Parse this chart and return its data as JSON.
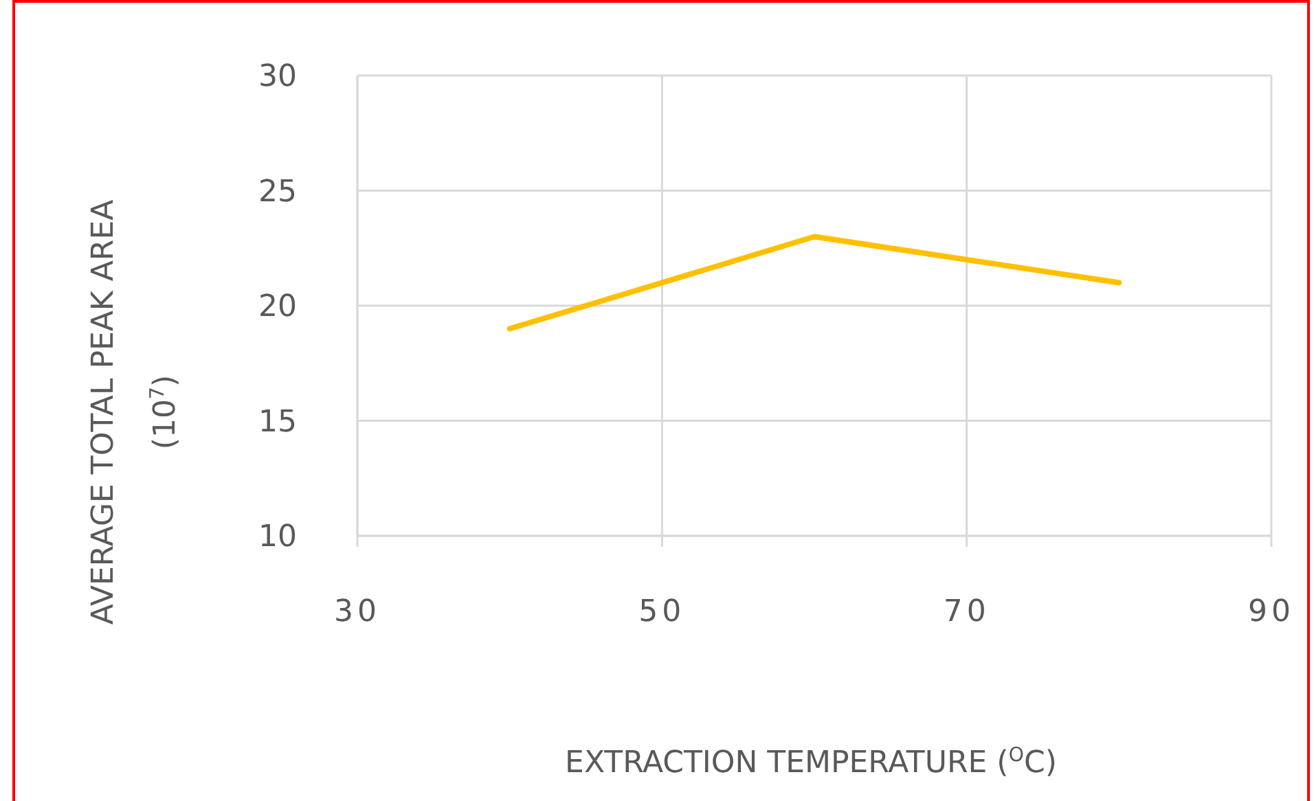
{
  "chart_data": {
    "type": "line",
    "xlabel": "EXTRACTION TEMPERATURE ($^{O}$C)",
    "ylabel": "AVERAGE TOTAL PEAK AREA\n(10$^{7}$)",
    "x": [
      40,
      60,
      80
    ],
    "series": [
      {
        "color": "#ffc000",
        "values": [
          19,
          23,
          21
        ]
      }
    ],
    "xlim": [
      30,
      90
    ],
    "xticks": [
      30,
      50,
      70,
      90
    ],
    "ylim": [
      10,
      30
    ],
    "yticks": [
      10,
      15,
      20,
      25,
      30
    ],
    "grid": true,
    "marker": "none",
    "line_style": "solid"
  }
}
